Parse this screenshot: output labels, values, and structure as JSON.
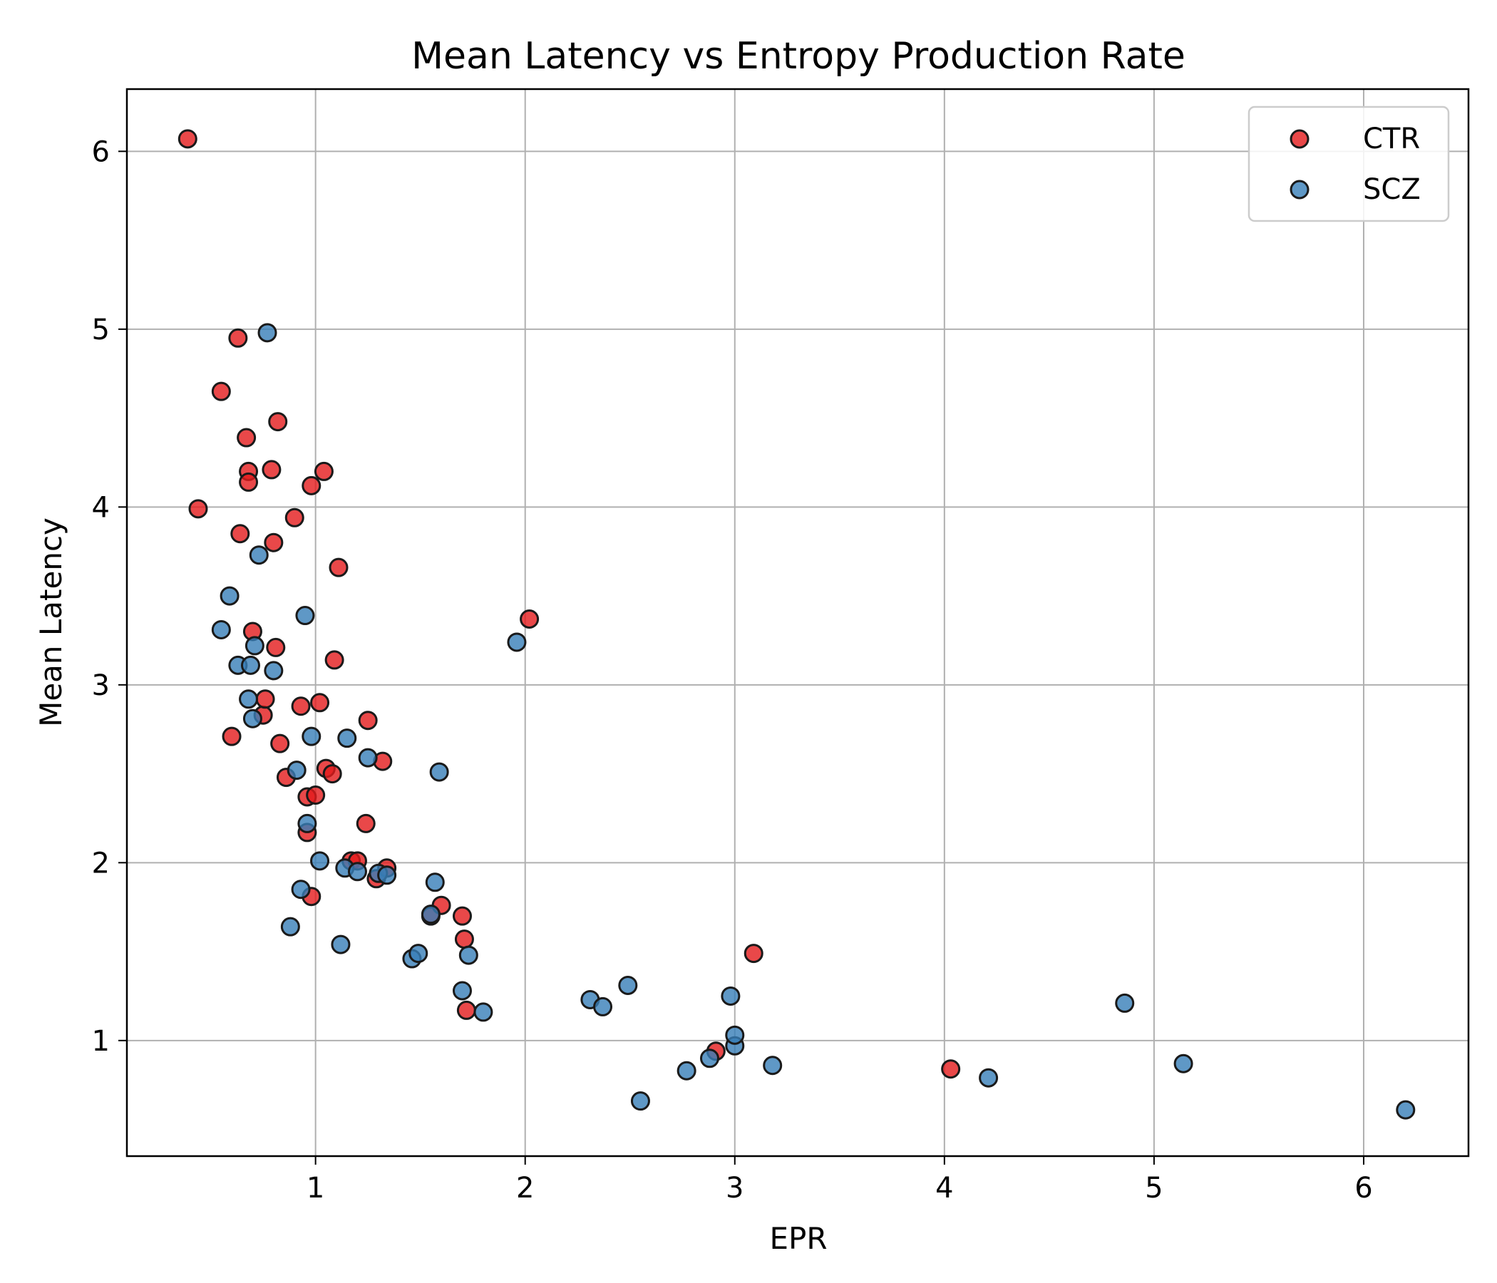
{
  "chart_data": {
    "type": "scatter",
    "title": "Mean Latency vs Entropy Production Rate",
    "xlabel": "EPR",
    "ylabel": "Mean Latency",
    "xlim": [
      0.1,
      6.5
    ],
    "ylim": [
      0.35,
      6.35
    ],
    "xticks": [
      1,
      2,
      3,
      4,
      5,
      6
    ],
    "yticks": [
      1,
      2,
      3,
      4,
      5,
      6
    ],
    "grid": true,
    "legend_position": "top-right",
    "series": [
      {
        "name": "CTR",
        "color": "#e41a1c",
        "points": [
          [
            0.39,
            6.07
          ],
          [
            0.44,
            3.99
          ],
          [
            0.55,
            4.65
          ],
          [
            0.6,
            2.71
          ],
          [
            0.63,
            4.95
          ],
          [
            0.64,
            3.85
          ],
          [
            0.67,
            4.39
          ],
          [
            0.68,
            4.2
          ],
          [
            0.68,
            4.14
          ],
          [
            0.7,
            3.3
          ],
          [
            0.75,
            2.83
          ],
          [
            0.76,
            2.92
          ],
          [
            0.79,
            4.21
          ],
          [
            0.8,
            3.8
          ],
          [
            0.81,
            3.21
          ],
          [
            0.82,
            4.48
          ],
          [
            0.83,
            2.67
          ],
          [
            0.86,
            2.48
          ],
          [
            0.9,
            3.94
          ],
          [
            0.93,
            2.88
          ],
          [
            0.96,
            2.37
          ],
          [
            0.96,
            2.17
          ],
          [
            0.98,
            4.12
          ],
          [
            0.98,
            1.81
          ],
          [
            1.0,
            2.38
          ],
          [
            1.02,
            2.9
          ],
          [
            1.04,
            4.2
          ],
          [
            1.05,
            2.53
          ],
          [
            1.08,
            2.5
          ],
          [
            1.09,
            3.14
          ],
          [
            1.11,
            3.66
          ],
          [
            1.17,
            2.01
          ],
          [
            1.2,
            2.01
          ],
          [
            1.24,
            2.22
          ],
          [
            1.25,
            2.8
          ],
          [
            1.29,
            1.91
          ],
          [
            1.32,
            2.57
          ],
          [
            1.34,
            1.97
          ],
          [
            1.55,
            1.7
          ],
          [
            1.6,
            1.76
          ],
          [
            1.7,
            1.7
          ],
          [
            1.71,
            1.57
          ],
          [
            1.72,
            1.17
          ],
          [
            2.02,
            3.37
          ],
          [
            2.91,
            0.94
          ],
          [
            3.09,
            1.49
          ],
          [
            4.03,
            0.84
          ]
        ]
      },
      {
        "name": "SCZ",
        "color": "#377eb8",
        "points": [
          [
            0.55,
            3.31
          ],
          [
            0.59,
            3.5
          ],
          [
            0.63,
            3.11
          ],
          [
            0.68,
            2.92
          ],
          [
            0.69,
            3.11
          ],
          [
            0.7,
            2.81
          ],
          [
            0.71,
            3.22
          ],
          [
            0.73,
            3.73
          ],
          [
            0.77,
            4.98
          ],
          [
            0.8,
            3.08
          ],
          [
            0.88,
            1.64
          ],
          [
            0.91,
            2.52
          ],
          [
            0.93,
            1.85
          ],
          [
            0.95,
            3.39
          ],
          [
            0.96,
            2.22
          ],
          [
            0.98,
            2.71
          ],
          [
            1.02,
            2.01
          ],
          [
            1.12,
            1.54
          ],
          [
            1.14,
            1.97
          ],
          [
            1.15,
            2.7
          ],
          [
            1.2,
            1.95
          ],
          [
            1.25,
            2.59
          ],
          [
            1.3,
            1.94
          ],
          [
            1.34,
            1.93
          ],
          [
            1.46,
            1.46
          ],
          [
            1.49,
            1.49
          ],
          [
            1.55,
            1.71
          ],
          [
            1.57,
            1.89
          ],
          [
            1.59,
            2.51
          ],
          [
            1.7,
            1.28
          ],
          [
            1.73,
            1.48
          ],
          [
            1.8,
            1.16
          ],
          [
            1.96,
            3.24
          ],
          [
            2.31,
            1.23
          ],
          [
            2.37,
            1.19
          ],
          [
            2.49,
            1.31
          ],
          [
            2.55,
            0.66
          ],
          [
            2.77,
            0.83
          ],
          [
            2.88,
            0.9
          ],
          [
            2.98,
            1.25
          ],
          [
            3.0,
            0.97
          ],
          [
            3.0,
            1.03
          ],
          [
            3.18,
            0.86
          ],
          [
            4.21,
            0.79
          ],
          [
            4.86,
            1.21
          ],
          [
            5.14,
            0.87
          ],
          [
            6.2,
            0.61
          ]
        ]
      }
    ]
  }
}
